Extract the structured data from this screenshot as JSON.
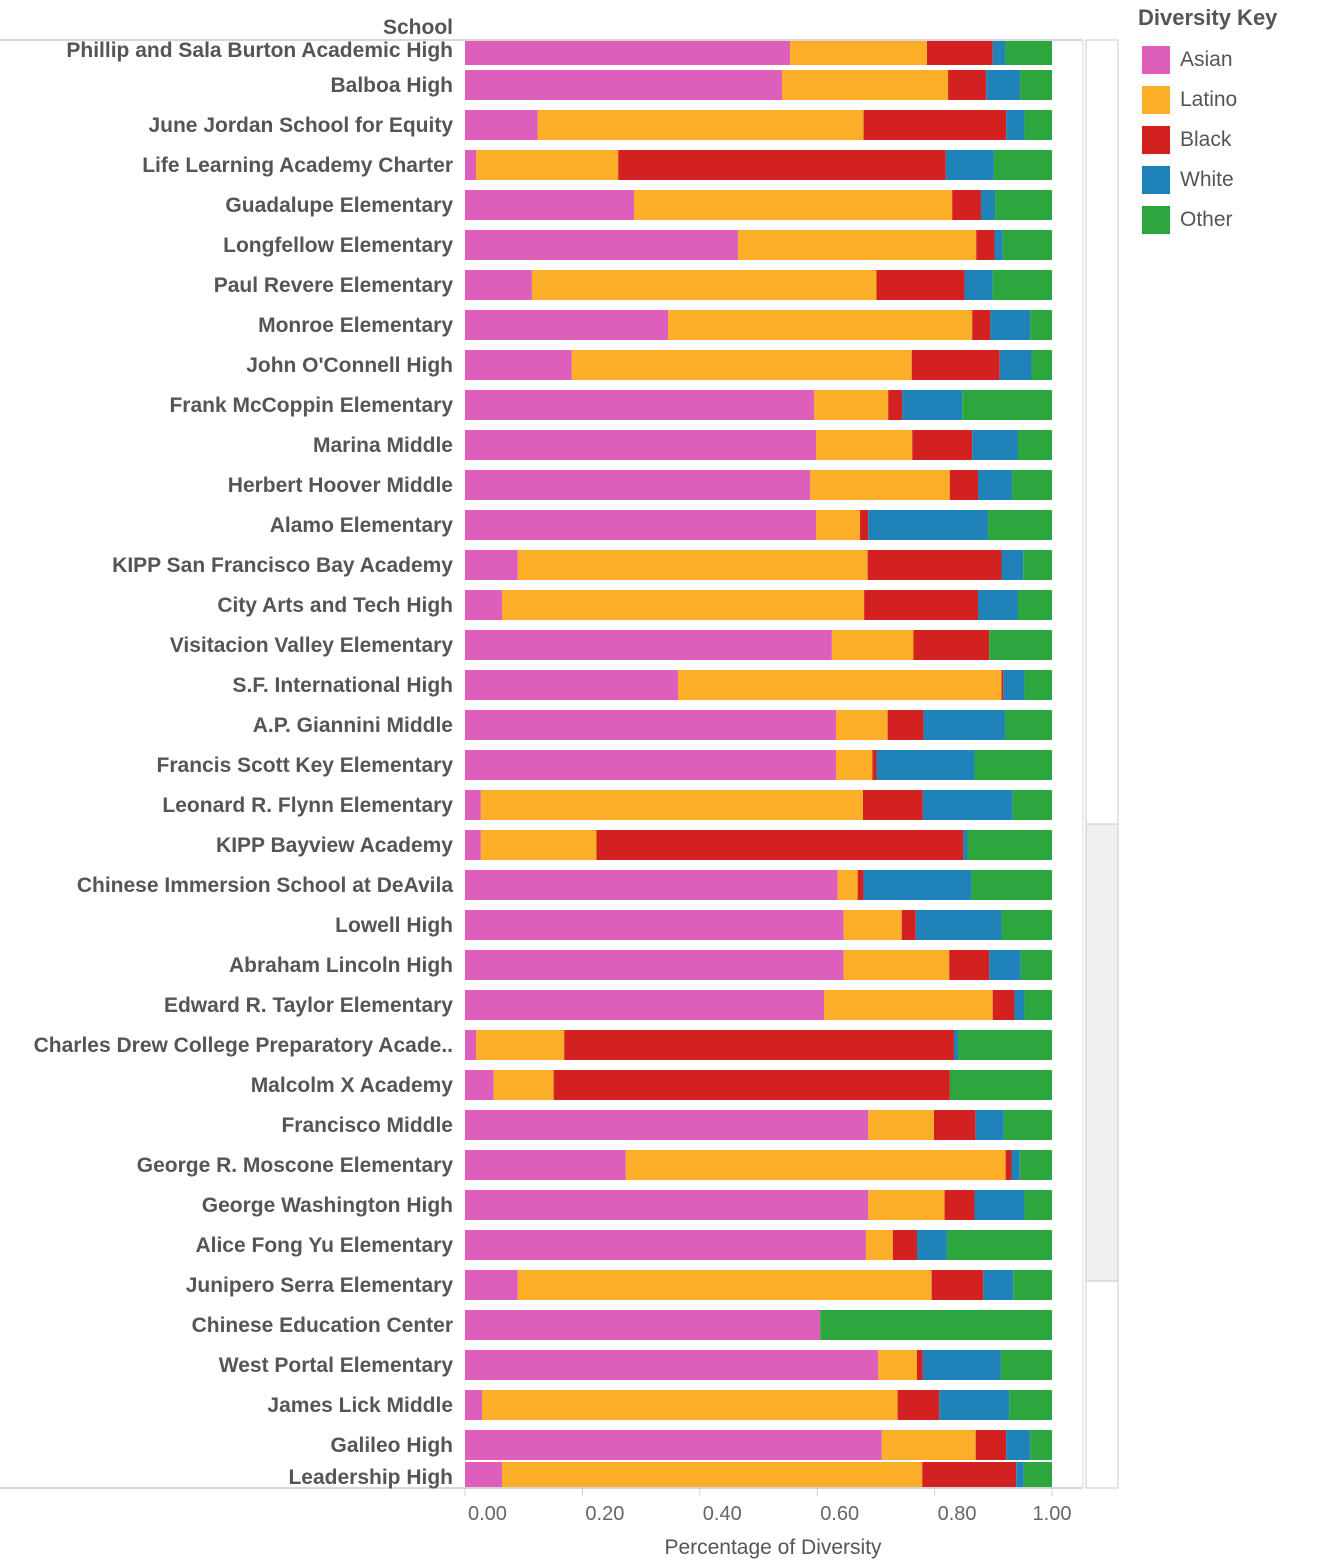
{
  "chart_data": {
    "type": "bar",
    "orientation": "horizontal",
    "stacked": true,
    "ylabel": "School",
    "xlabel": "Percentage of Diversity",
    "xlim": [
      0,
      1
    ],
    "xticks": [
      "0.00",
      "0.20",
      "0.40",
      "0.60",
      "0.80",
      "1.00"
    ],
    "legend": {
      "title": "Diversity Key",
      "position": "right",
      "entries": [
        {
          "name": "Asian",
          "color": "#dd5fbb"
        },
        {
          "name": "Latino",
          "color": "#fbae27"
        },
        {
          "name": "Black",
          "color": "#d32121"
        },
        {
          "name": "White",
          "color": "#1f83b9"
        },
        {
          "name": "Other",
          "color": "#2da63e"
        }
      ]
    },
    "categories": [
      "Phillip and Sala Burton Academic High",
      "Balboa High",
      "June Jordan School for Equity",
      "Life Learning Academy Charter",
      "Guadalupe Elementary",
      "Longfellow Elementary",
      "Paul Revere Elementary",
      "Monroe Elementary",
      "John O'Connell High",
      "Frank McCoppin Elementary",
      "Marina Middle",
      "Herbert Hoover Middle",
      "Alamo Elementary",
      "KIPP San Francisco Bay Academy",
      "City Arts and Tech High",
      "Visitacion Valley Elementary",
      "S.F. International High",
      "A.P. Giannini Middle",
      "Francis Scott Key Elementary",
      "Leonard R. Flynn Elementary",
      "KIPP Bayview Academy",
      "Chinese Immersion School at DeAvila",
      "Lowell High",
      "Abraham Lincoln High",
      "Edward R. Taylor Elementary",
      "Charles Drew College Preparatory Acade..",
      "Malcolm X Academy",
      "Francisco Middle",
      "George R. Moscone Elementary",
      "George Washington High",
      "Alice Fong Yu Elementary",
      "Junipero Serra Elementary",
      "Chinese Education Center",
      "West Portal Elementary",
      "James Lick Middle",
      "Galileo High",
      "Leadership High"
    ],
    "series": [
      {
        "name": "Asian",
        "color": "#dd5fbb",
        "values": [
          0.554,
          0.54,
          0.124,
          0.019,
          0.288,
          0.465,
          0.114,
          0.346,
          0.182,
          0.595,
          0.598,
          0.588,
          0.598,
          0.09,
          0.063,
          0.625,
          0.363,
          0.632,
          0.632,
          0.027,
          0.027,
          0.635,
          0.645,
          0.645,
          0.612,
          0.019,
          0.049,
          0.687,
          0.274,
          0.687,
          0.683,
          0.09,
          0.605,
          0.704,
          0.029,
          0.71,
          0.063
        ]
      },
      {
        "name": "Latino",
        "color": "#fbae27",
        "values": [
          0.233,
          0.283,
          0.555,
          0.242,
          0.542,
          0.406,
          0.587,
          0.518,
          0.579,
          0.126,
          0.164,
          0.238,
          0.075,
          0.596,
          0.617,
          0.139,
          0.551,
          0.088,
          0.062,
          0.651,
          0.197,
          0.034,
          0.099,
          0.18,
          0.287,
          0.15,
          0.102,
          0.112,
          0.647,
          0.13,
          0.046,
          0.705,
          0.0,
          0.066,
          0.708,
          0.16,
          0.716
        ]
      },
      {
        "name": "Black",
        "color": "#d32121",
        "values": [
          0.112,
          0.065,
          0.243,
          0.558,
          0.049,
          0.031,
          0.15,
          0.031,
          0.15,
          0.024,
          0.102,
          0.048,
          0.014,
          0.228,
          0.194,
          0.129,
          0.003,
          0.061,
          0.007,
          0.102,
          0.625,
          0.01,
          0.024,
          0.068,
          0.037,
          0.664,
          0.675,
          0.071,
          0.01,
          0.051,
          0.041,
          0.088,
          0.0,
          0.01,
          0.071,
          0.052,
          0.16
        ]
      },
      {
        "name": "White",
        "color": "#1f83b9",
        "values": [
          0.021,
          0.058,
          0.031,
          0.082,
          0.024,
          0.014,
          0.048,
          0.068,
          0.054,
          0.102,
          0.078,
          0.058,
          0.204,
          0.037,
          0.068,
          0.0,
          0.036,
          0.139,
          0.167,
          0.153,
          0.007,
          0.184,
          0.146,
          0.054,
          0.017,
          0.007,
          0.0,
          0.048,
          0.014,
          0.085,
          0.051,
          0.051,
          0.0,
          0.133,
          0.119,
          0.041,
          0.013
        ]
      },
      {
        "name": "Other",
        "color": "#2da63e",
        "values": [
          0.08,
          0.054,
          0.047,
          0.099,
          0.097,
          0.084,
          0.101,
          0.037,
          0.035,
          0.153,
          0.058,
          0.068,
          0.109,
          0.049,
          0.058,
          0.107,
          0.047,
          0.08,
          0.132,
          0.067,
          0.144,
          0.137,
          0.086,
          0.053,
          0.047,
          0.16,
          0.174,
          0.082,
          0.055,
          0.047,
          0.179,
          0.066,
          0.395,
          0.087,
          0.073,
          0.037,
          0.048
        ]
      }
    ],
    "grid": false
  }
}
